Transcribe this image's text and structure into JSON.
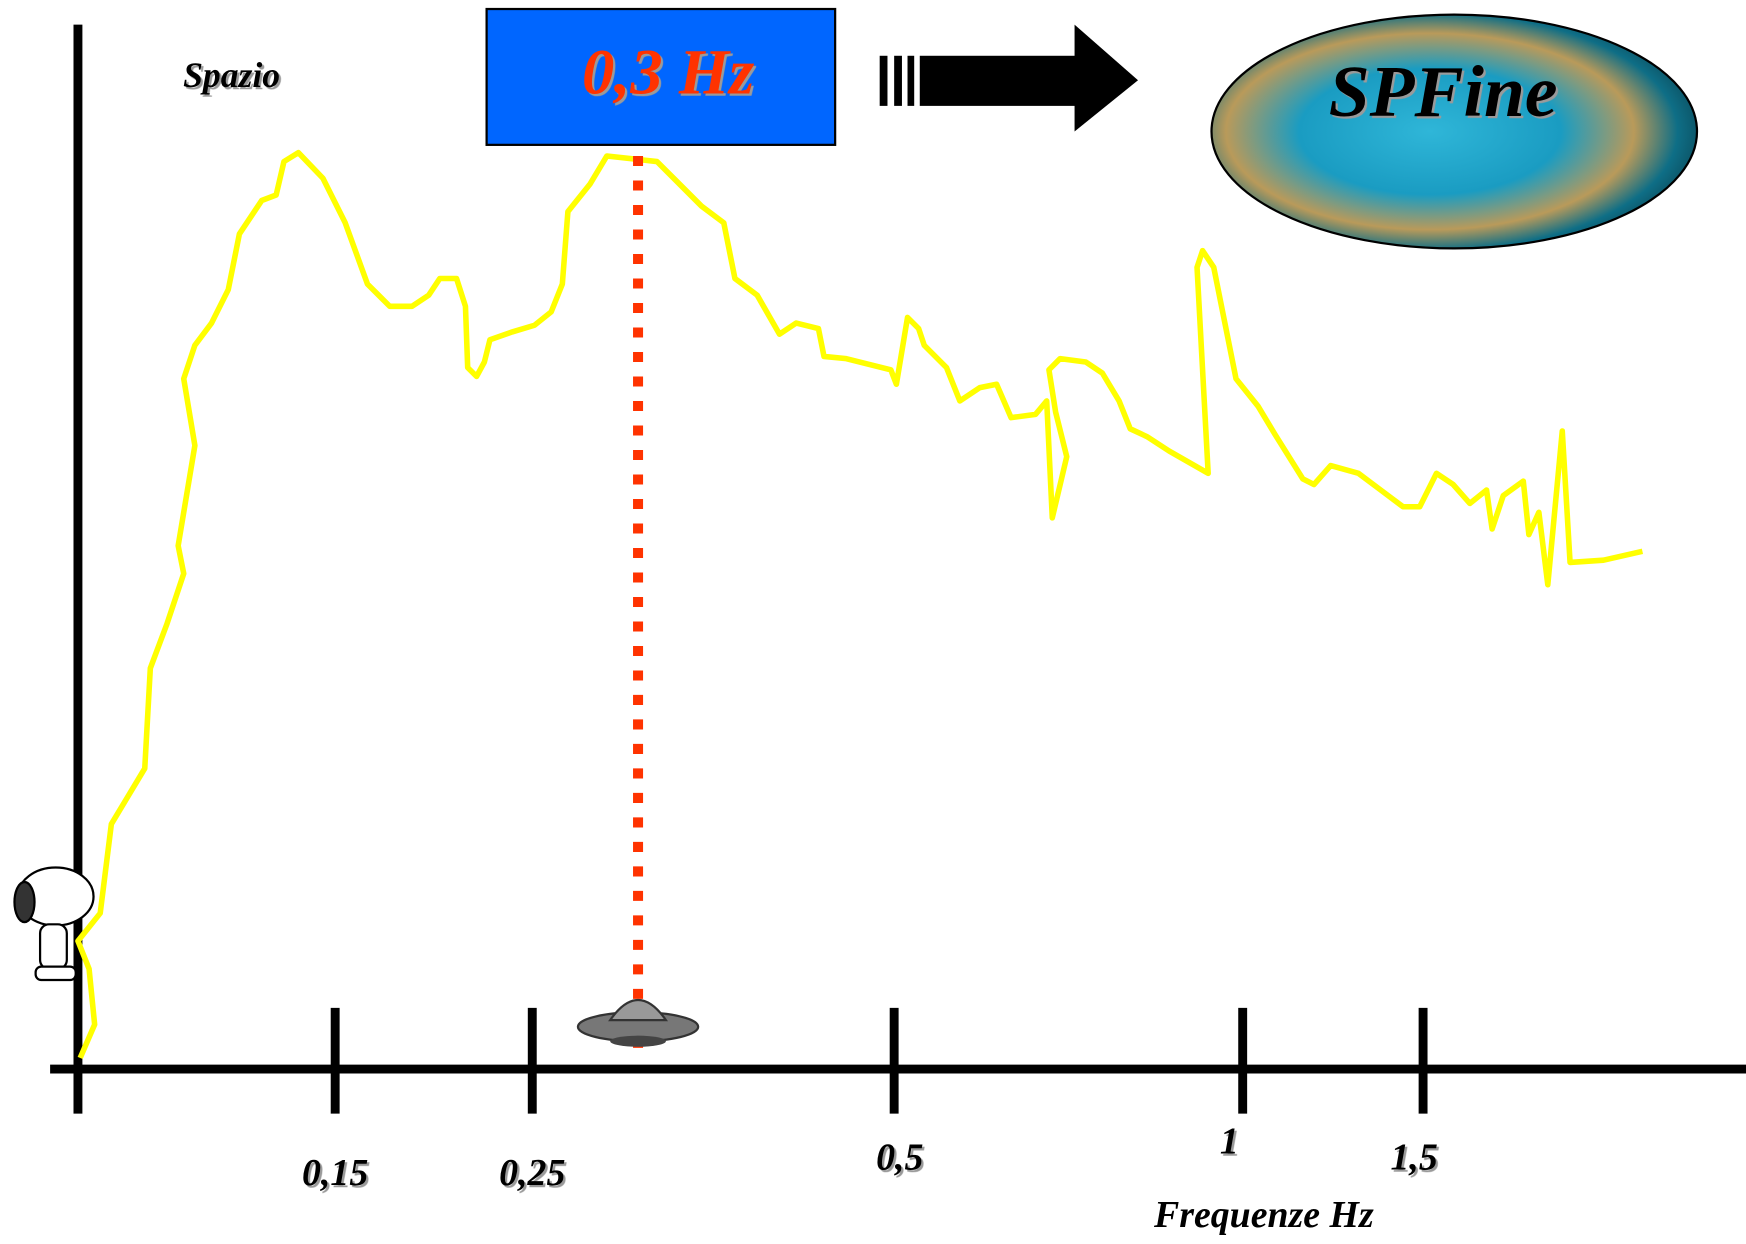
{
  "y_axis_label": "Spazio",
  "highlight": "0,3 Hz",
  "logo": "SPFine",
  "x_axis": {
    "label": "Frequenze Hz",
    "ticks": [
      "0,15",
      "0,25",
      "0,5",
      "1",
      "1,5"
    ]
  }
}
